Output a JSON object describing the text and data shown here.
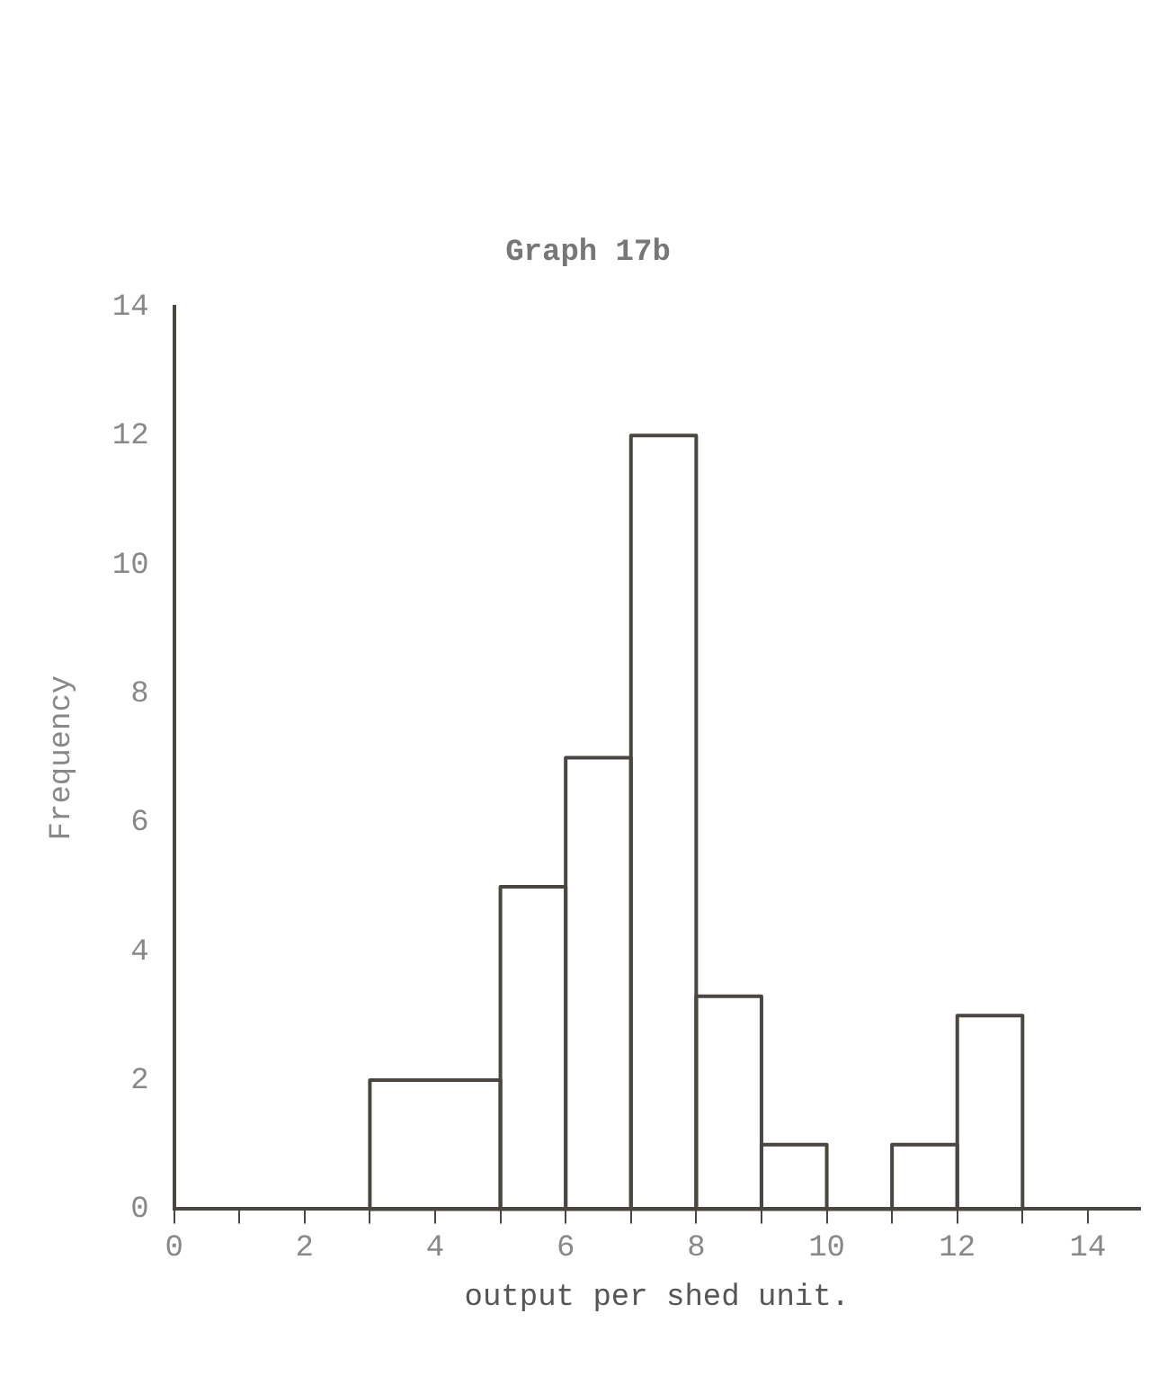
{
  "chart_data": {
    "type": "histogram",
    "title": "Graph 17b",
    "xlabel": "output per shed unit.",
    "ylabel": "Frequency",
    "bins": [
      3,
      5,
      6,
      7,
      8,
      9,
      10,
      11,
      12,
      13
    ],
    "values": [
      2,
      5,
      7,
      12,
      3.3,
      1,
      0,
      1,
      3
    ],
    "color": "#4a4640",
    "xlim": [
      0,
      14.8
    ],
    "ylim": [
      0,
      14
    ],
    "xticks": [
      0,
      {
        "value": 1,
        "label": null
      },
      2,
      {
        "value": 3,
        "label": null
      },
      4,
      {
        "value": 5,
        "label": null
      },
      6,
      {
        "value": 7,
        "label": null
      },
      8,
      {
        "value": 9,
        "label": null
      },
      10,
      {
        "value": 11,
        "label": null
      },
      12,
      {
        "value": 13,
        "label": null
      },
      14
    ],
    "yticks": [
      0,
      2,
      4,
      6,
      8,
      10,
      12,
      14
    ],
    "grid": false
  }
}
